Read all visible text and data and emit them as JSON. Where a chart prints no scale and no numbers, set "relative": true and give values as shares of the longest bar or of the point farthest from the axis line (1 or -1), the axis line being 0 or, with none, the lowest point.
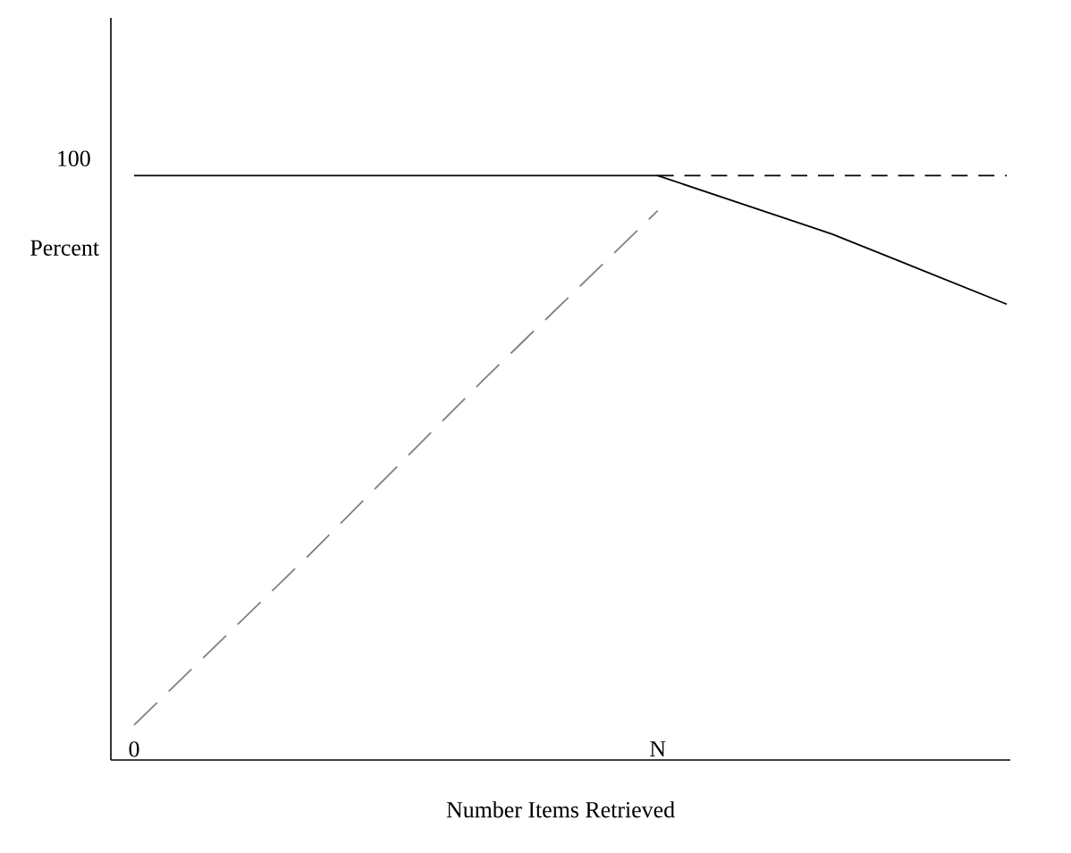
{
  "chart_data": {
    "type": "line",
    "xlabel": "Number Items Retrieved",
    "ylabel": "Percent",
    "relative": true,
    "categories": [
      "0",
      null,
      null,
      "N",
      null,
      null
    ],
    "annotations": [
      "100"
    ],
    "series": [
      {
        "values": [
          1,
          1,
          1,
          1,
          0.9,
          0.78
        ],
        "color": "#000000",
        "line_style": "solid"
      },
      {
        "values": [
          null,
          null,
          null,
          1,
          1,
          1
        ],
        "color": "#000000",
        "line_style": "dashed"
      },
      {
        "values": [
          0.06,
          0.35,
          0.65,
          0.94,
          null,
          null
        ],
        "color": "#808080",
        "line_style": "loosely dashed"
      }
    ]
  }
}
